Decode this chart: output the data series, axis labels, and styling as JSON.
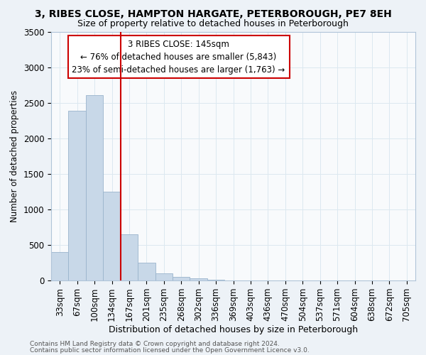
{
  "title": "3, RIBES CLOSE, HAMPTON HARGATE, PETERBOROUGH, PE7 8EH",
  "subtitle": "Size of property relative to detached houses in Peterborough",
  "xlabel": "Distribution of detached houses by size in Peterborough",
  "ylabel": "Number of detached properties",
  "footer_line1": "Contains HM Land Registry data © Crown copyright and database right 2024.",
  "footer_line2": "Contains public sector information licensed under the Open Government Licence v3.0.",
  "annotation_title": "3 RIBES CLOSE: 145sqm",
  "annotation_line1": "← 76% of detached houses are smaller (5,843)",
  "annotation_line2": "23% of semi-detached houses are larger (1,763) →",
  "bar_color": "#c8d8e8",
  "bar_edge_color": "#9ab4cc",
  "vline_color": "#cc0000",
  "grid_color": "#dce8f0",
  "background_color": "#edf2f7",
  "plot_bg_color": "#f8fafc",
  "categories": [
    "33sqm",
    "67sqm",
    "100sqm",
    "134sqm",
    "167sqm",
    "201sqm",
    "235sqm",
    "268sqm",
    "302sqm",
    "336sqm",
    "369sqm",
    "403sqm",
    "436sqm",
    "470sqm",
    "504sqm",
    "537sqm",
    "571sqm",
    "604sqm",
    "638sqm",
    "672sqm",
    "705sqm"
  ],
  "values": [
    400,
    2390,
    2610,
    1250,
    650,
    250,
    100,
    50,
    30,
    10,
    5,
    3,
    2,
    1,
    1,
    1,
    1,
    0,
    0,
    0,
    0
  ],
  "ylim": [
    0,
    3500
  ],
  "yticks": [
    0,
    500,
    1000,
    1500,
    2000,
    2500,
    3000,
    3500
  ],
  "vline_index": 3.5,
  "title_fontsize": 10,
  "subtitle_fontsize": 9,
  "xlabel_fontsize": 9,
  "ylabel_fontsize": 8.5,
  "tick_fontsize": 8.5,
  "footer_fontsize": 6.5,
  "annot_fontsize": 8.5
}
